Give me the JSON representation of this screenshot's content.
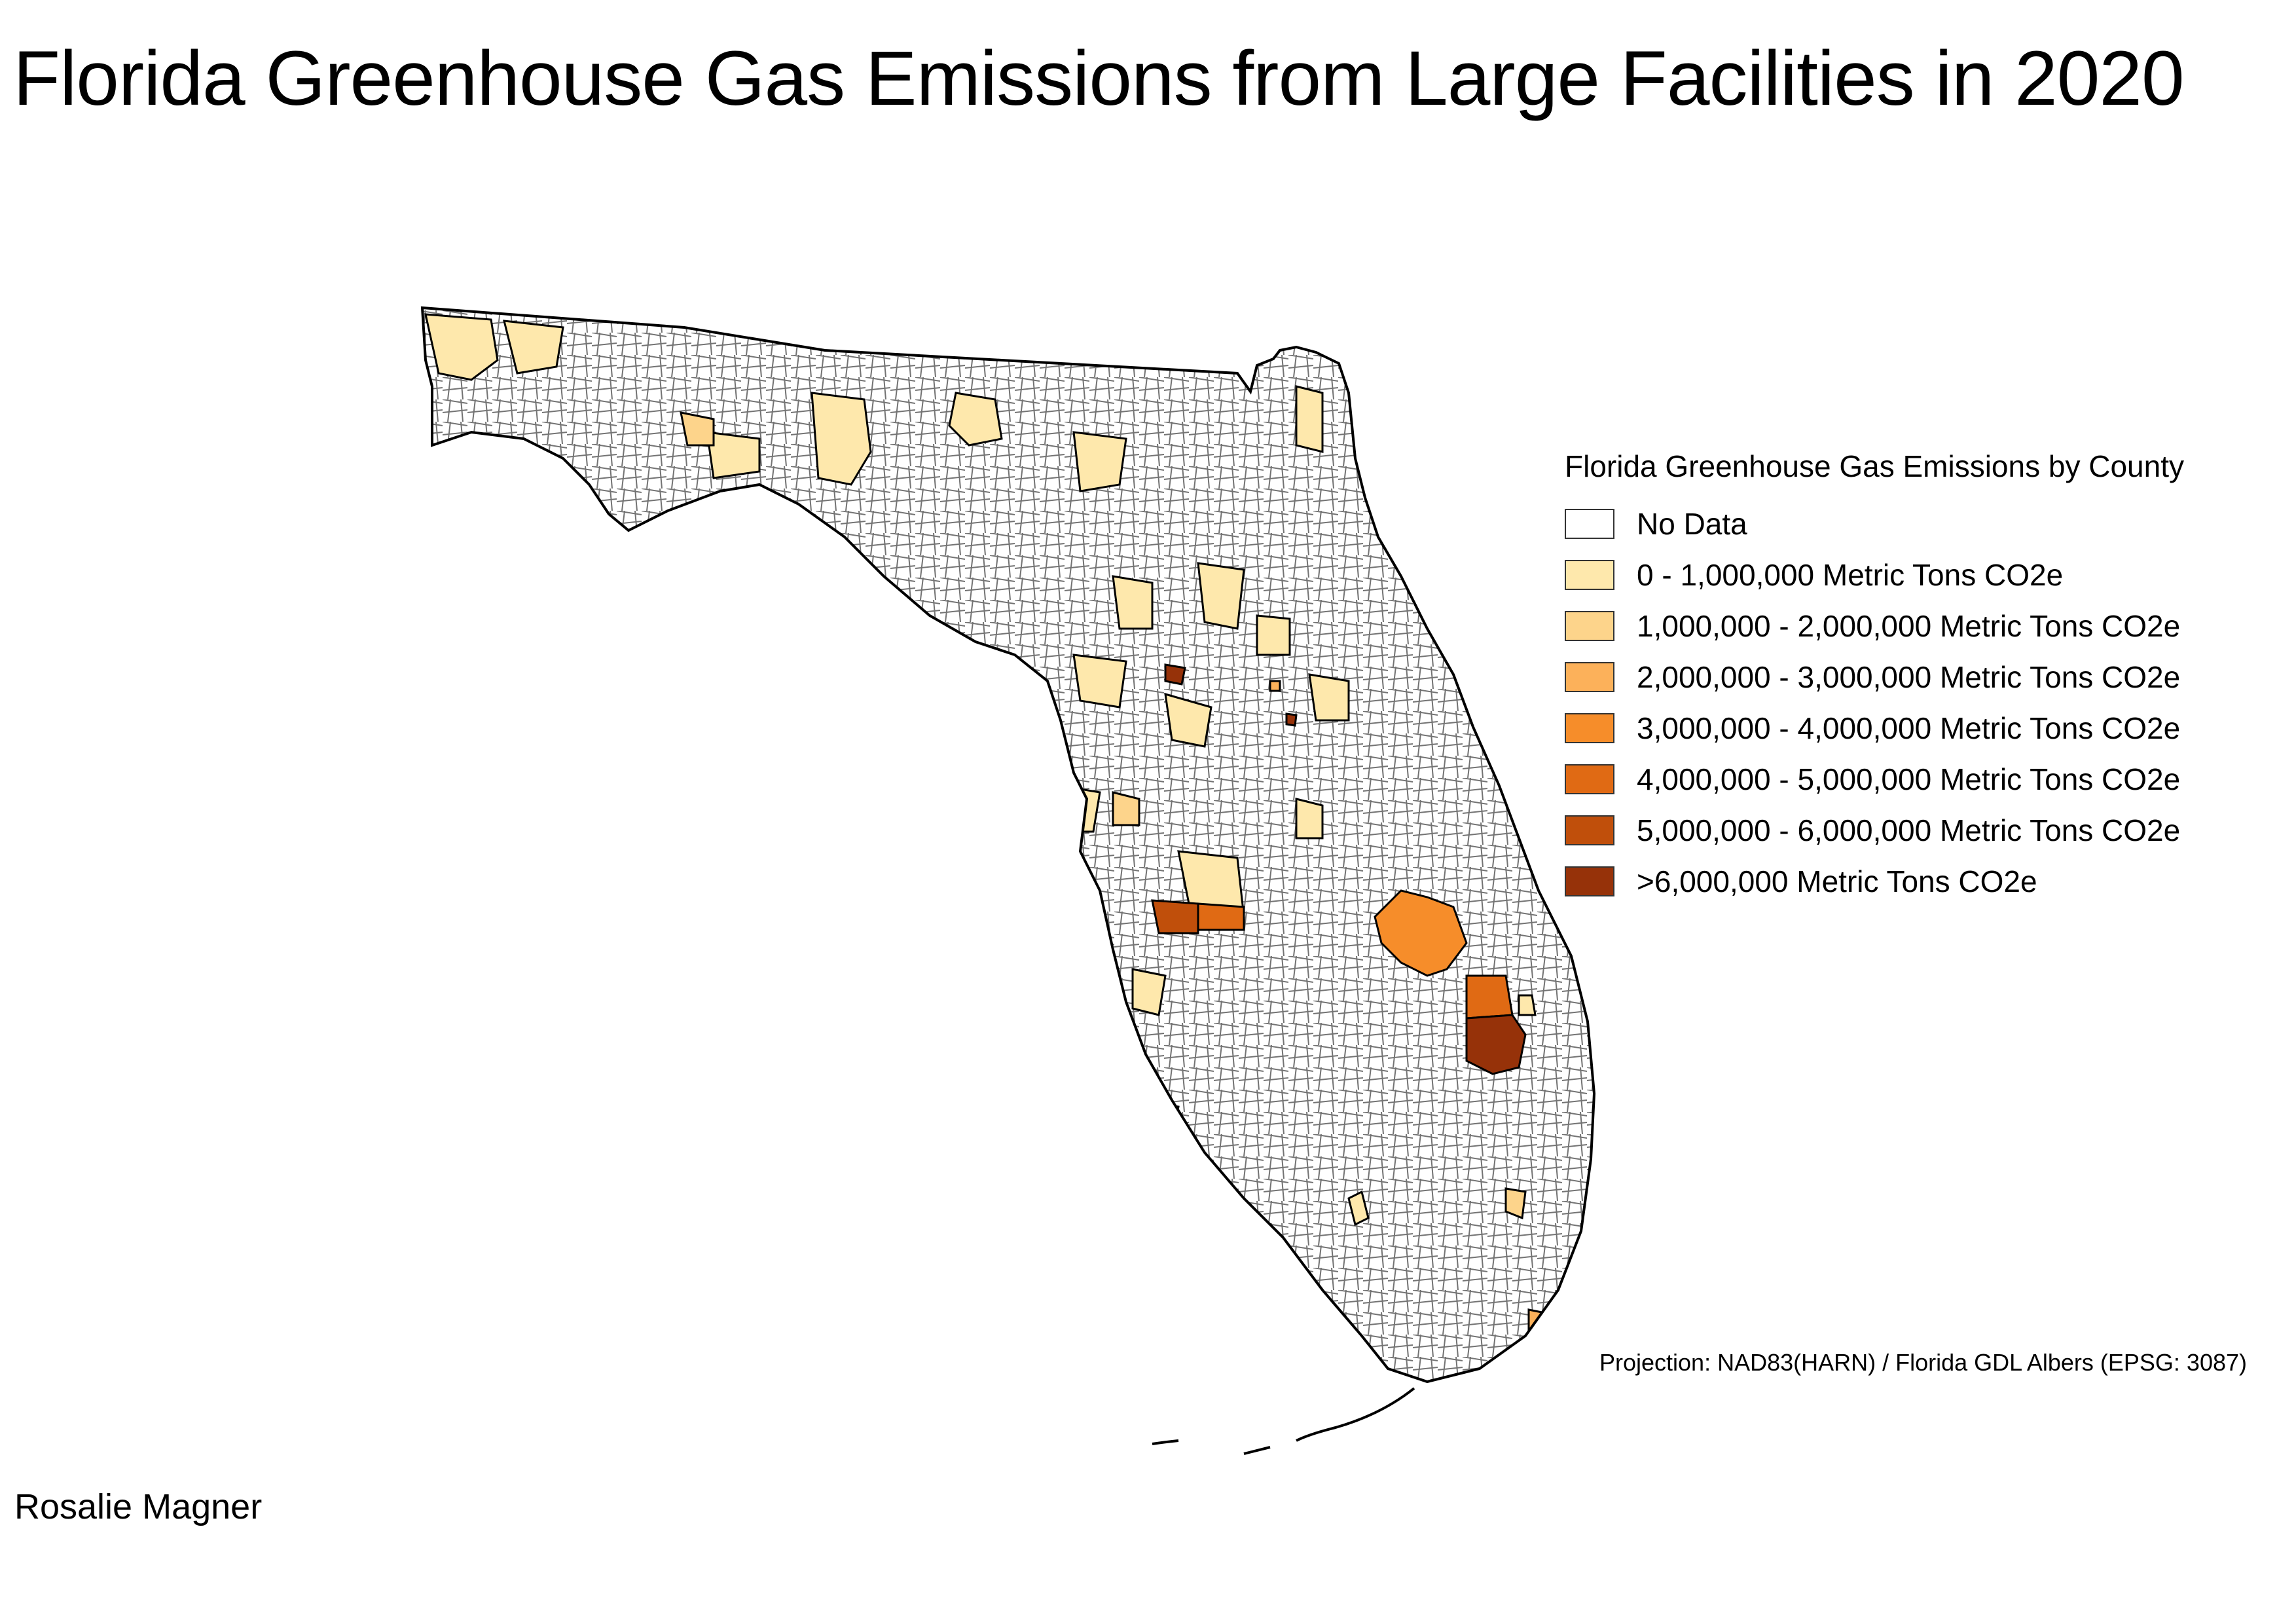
{
  "title": "Florida Greenhouse Gas Emissions from Large Facilities in 2020",
  "author": "Rosalie Magner",
  "projection": "Projection: NAD83(HARN) / Florida GDL Albers (EPSG: 3087)",
  "legend": {
    "title": "Florida Greenhouse Gas Emissions by County",
    "classes": [
      {
        "label": "No Data",
        "color": "#ffffff"
      },
      {
        "label": "0 - 1,000,000 Metric Tons CO2e",
        "color": "#fee8ac"
      },
      {
        "label": "1,000,000 - 2,000,000 Metric Tons CO2e",
        "color": "#fdd48b"
      },
      {
        "label": "2,000,000 - 3,000,000 Metric Tons CO2e",
        "color": "#fcb15a"
      },
      {
        "label": "3,000,000 - 4,000,000 Metric Tons CO2e",
        "color": "#f68d2a"
      },
      {
        "label": "4,000,000 - 5,000,000 Metric Tons CO2e",
        "color": "#e06a14"
      },
      {
        "label": "5,000,000 - 6,000,000 Metric Tons CO2e",
        "color": "#c04f0b"
      },
      {
        "label": ">6,000,000 Metric Tons CO2e",
        "color": "#963209"
      }
    ]
  },
  "map": {
    "region": "Florida",
    "outline_color": "#000000"
  }
}
